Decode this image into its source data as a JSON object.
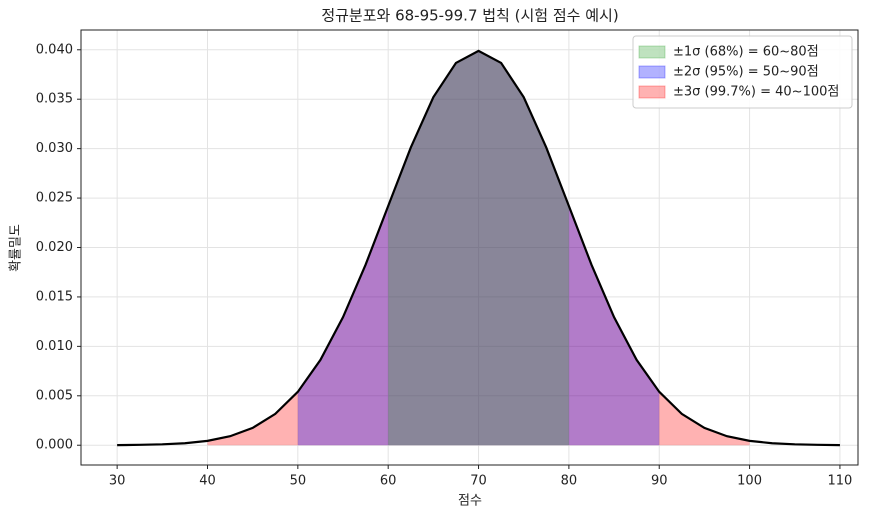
{
  "chart_data": {
    "type": "normal-bands",
    "title": "정규분포와 68-95-99.7 법칙 (시험 점수 예시)",
    "xlabel": "점수",
    "ylabel": "확률밀도",
    "x": [
      30,
      32.5,
      35,
      37.5,
      40,
      42.5,
      45,
      47.5,
      50,
      52.5,
      55,
      57.5,
      60,
      62.5,
      65,
      67.5,
      70,
      72.5,
      75,
      77.5,
      80,
      82.5,
      85,
      87.5,
      90,
      92.5,
      95,
      97.5,
      100,
      102.5,
      105,
      107.5,
      110
    ],
    "values": [
      1e-05,
      4e-05,
      9e-05,
      0.0002,
      0.00044,
      0.00091,
      0.00175,
      0.00317,
      0.0054,
      0.00863,
      0.01295,
      0.01826,
      0.0242,
      0.03011,
      0.03521,
      0.03867,
      0.03989,
      0.03867,
      0.03521,
      0.03011,
      0.0242,
      0.01826,
      0.01295,
      0.00863,
      0.0054,
      0.00317,
      0.00175,
      0.00091,
      0.00044,
      0.0002,
      9e-05,
      4e-05,
      1e-05
    ],
    "color": "#000000",
    "bands": [
      {
        "name": "±1σ  (68%) = 60~80점",
        "color": "#2ca02c",
        "range": [
          60,
          80
        ]
      },
      {
        "name": "±2σ  (95%) = 50~90점",
        "color": "#0000ff",
        "range": [
          50,
          90
        ]
      },
      {
        "name": "±3σ  (99.7%) = 40~100점",
        "color": "#ff0000",
        "range": [
          40,
          100
        ]
      }
    ],
    "band_alpha": 0.3,
    "xlim": [
      26,
      112
    ],
    "ylim": [
      -0.002,
      0.042
    ],
    "xticks": [
      30,
      40,
      50,
      60,
      70,
      80,
      90,
      100,
      110
    ],
    "yticks": [
      {
        "value": 0,
        "label": "0.000"
      },
      {
        "value": 0.005,
        "label": "0.005"
      },
      {
        "value": 0.01,
        "label": "0.010"
      },
      {
        "value": 0.015,
        "label": "0.015"
      },
      {
        "value": 0.02,
        "label": "0.020"
      },
      {
        "value": 0.025,
        "label": "0.025"
      },
      {
        "value": 0.03,
        "label": "0.030"
      },
      {
        "value": 0.035,
        "label": "0.035"
      },
      {
        "value": 0.04,
        "label": "0.040"
      }
    ],
    "grid": true,
    "legend": "upper right"
  }
}
